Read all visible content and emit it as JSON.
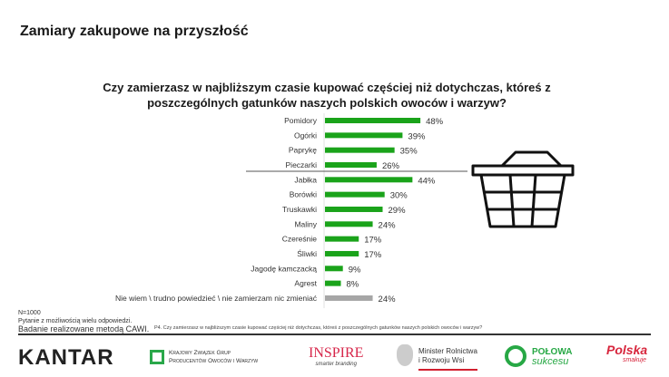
{
  "title": "Zamiary zakupowe na przyszłość",
  "question": "Czy zamierzasz w najbliższym czasie kupować częściej niż dotychczas, któreś z poszczególnych gatunków naszych polskich owoców i warzyw?",
  "chart_data": {
    "type": "bar",
    "orientation": "horizontal",
    "categories": [
      "Pomidory",
      "Ogórki",
      "Paprykę",
      "Pieczarki",
      "Jabłka",
      "Borówki",
      "Truskawki",
      "Maliny",
      "Czereśnie",
      "Śliwki",
      "Jagodę kamczacką",
      "Agrest",
      "Nie wiem \\ trudno powiedzieć \\ nie zamierzam nic zmieniać"
    ],
    "values": [
      48,
      39,
      35,
      26,
      44,
      30,
      29,
      24,
      17,
      17,
      9,
      8,
      24
    ],
    "value_labels": [
      "48%",
      "39%",
      "35%",
      "26%",
      "44%",
      "30%",
      "29%",
      "24%",
      "17%",
      "17%",
      "9%",
      "8%",
      "24%"
    ],
    "colors": {
      "main": "#1aa31a",
      "other": "#a6a6a6"
    },
    "unit": "%",
    "grid": false
  },
  "notes": {
    "n": "N=1000",
    "multi": "Pytanie z możliwością wielu odpowiedzi.",
    "method": "Badanie realizowane metodą CAWI."
  },
  "source_question": "P4. Czy zamierzasz w najbliższym czasie kupować częściej niż dotychczas, któreś z poszczególnych gatunków naszych polskich owoców i warzyw?",
  "logos": {
    "kantar": "KANTAR",
    "kzg_line1": "Krajowy Związek Grup",
    "kzg_line2": "Producentów Owoców i Warzyw",
    "inspire": "INSPIRE",
    "inspire_sub": "smarter branding",
    "minister_line1": "Minister Rolnictwa",
    "minister_line2": "i Rozwoju Wsi",
    "polowa1": "POŁOWA",
    "polowa2": "sukcesu",
    "polska1": "Polska",
    "polska2": "smakuje"
  }
}
